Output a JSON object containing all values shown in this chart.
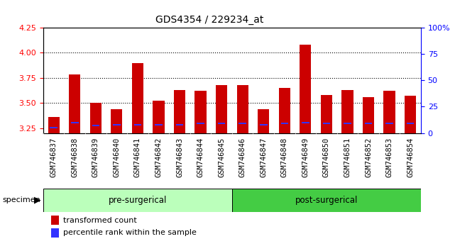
{
  "title": "GDS4354 / 229234_at",
  "samples": [
    "GSM746837",
    "GSM746838",
    "GSM746839",
    "GSM746840",
    "GSM746841",
    "GSM746842",
    "GSM746843",
    "GSM746844",
    "GSM746845",
    "GSM746846",
    "GSM746847",
    "GSM746848",
    "GSM746849",
    "GSM746850",
    "GSM746851",
    "GSM746852",
    "GSM746853",
    "GSM746854"
  ],
  "transformed_counts": [
    3.36,
    3.78,
    3.5,
    3.44,
    3.9,
    3.52,
    3.63,
    3.62,
    3.68,
    3.68,
    3.44,
    3.65,
    4.08,
    3.58,
    3.63,
    3.56,
    3.62,
    3.57
  ],
  "percentile_ranks": [
    5,
    10,
    7,
    8,
    8,
    8,
    8,
    9,
    9,
    9,
    8,
    9,
    10,
    9,
    9,
    9,
    9,
    9
  ],
  "pre_surgical_count": 9,
  "post_surgical_count": 9,
  "ylim_left": [
    3.2,
    4.25
  ],
  "ylim_right": [
    0,
    100
  ],
  "yticks_left": [
    3.25,
    3.5,
    3.75,
    4.0,
    4.25
  ],
  "yticks_right": [
    0,
    25,
    50,
    75,
    100
  ],
  "bar_color_red": "#cc0000",
  "bar_color_blue": "#3333ff",
  "pre_surgical_color": "#bbffbb",
  "post_surgical_color": "#44cc44",
  "bar_width": 0.55,
  "base_value": 3.2,
  "title_fontsize": 10,
  "tick_fontsize": 7.5,
  "legend_fontsize": 8
}
